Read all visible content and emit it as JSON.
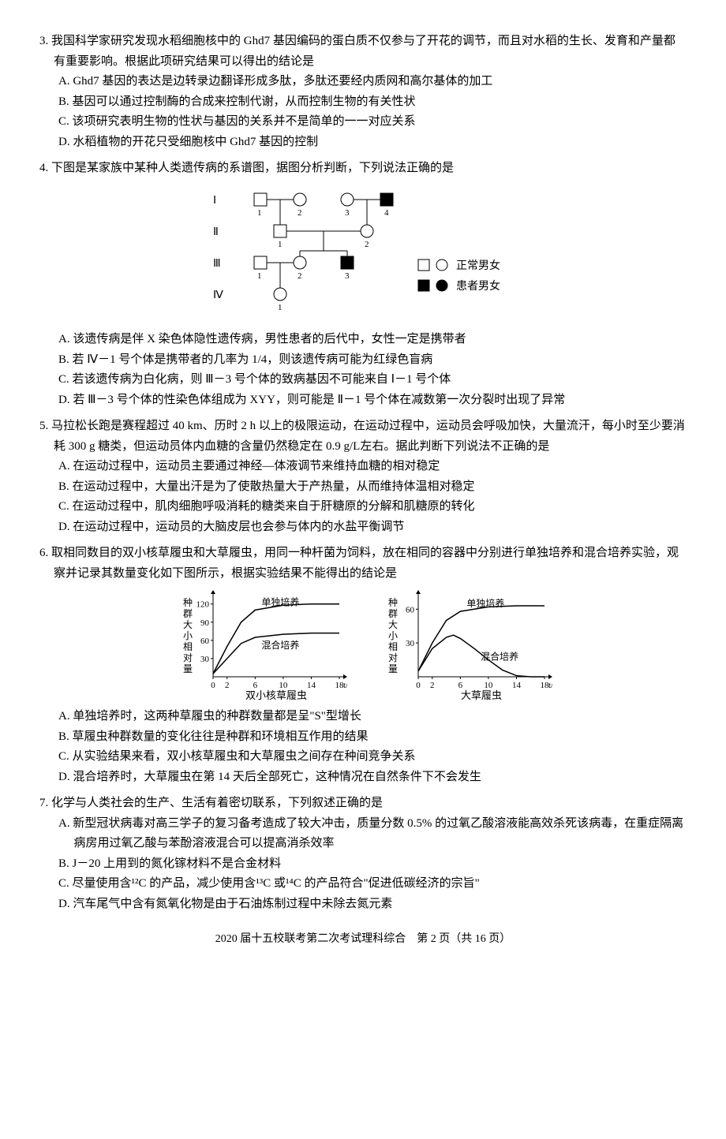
{
  "q3": {
    "stem": "3. 我国科学家研究发现水稻细胞核中的 Ghd7 基因编码的蛋白质不仅参与了开花的调节，而且对水稻的生长、发育和产量都有重要影响。根据此项研究结果可以得出的结论是",
    "A": "A. Ghd7 基因的表达是边转录边翻译形成多肽，多肽还要经内质网和高尔基体的加工",
    "B": "B. 基因可以通过控制酶的合成来控制代谢，从而控制生物的有关性状",
    "C": "C. 该项研究表明生物的性状与基因的关系并不是简单的一一对应关系",
    "D": "D. 水稻植物的开花只受细胞核中 Ghd7 基因的控制"
  },
  "q4": {
    "stem": "4. 下图是某家族中某种人类遗传病的系谱图，据图分析判断，下列说法正确的是",
    "pedigree": {
      "rows_labels": [
        "Ⅰ",
        "Ⅱ",
        "Ⅲ",
        "Ⅳ"
      ],
      "legend_normal": "正常男女",
      "legend_affected": "患者男女",
      "node_color_normal": "#ffffff",
      "node_color_affected": "#000000",
      "stroke": "#000000",
      "row1": [
        {
          "id": "1",
          "shape": "square",
          "fill": "#ffffff",
          "x": 90
        },
        {
          "id": "2",
          "shape": "circle",
          "fill": "#ffffff",
          "x": 140
        },
        {
          "id": "3",
          "shape": "circle",
          "fill": "#ffffff",
          "x": 200
        },
        {
          "id": "4",
          "shape": "square",
          "fill": "#000000",
          "x": 250
        }
      ],
      "row2": [
        {
          "id": "1",
          "shape": "square",
          "fill": "#ffffff",
          "x": 115
        },
        {
          "id": "2",
          "shape": "circle",
          "fill": "#ffffff",
          "x": 225
        }
      ],
      "row3": [
        {
          "id": "1",
          "shape": "square",
          "fill": "#ffffff",
          "x": 90
        },
        {
          "id": "2",
          "shape": "circle",
          "fill": "#ffffff",
          "x": 140
        },
        {
          "id": "3",
          "shape": "square",
          "fill": "#000000",
          "x": 200
        }
      ],
      "row4": [
        {
          "id": "1",
          "shape": "circle",
          "fill": "#ffffff",
          "x": 115
        }
      ]
    },
    "A": "A. 该遗传病是伴 X 染色体隐性遗传病，男性患者的后代中，女性一定是携带者",
    "B": "B. 若 Ⅳ－1 号个体是携带者的几率为 1/4，则该遗传病可能为红绿色盲病",
    "C": "C. 若该遗传病为白化病，则 Ⅲ－3 号个体的致病基因不可能来自 Ⅰ－1 号个体",
    "D": "D. 若 Ⅲ－3 号个体的性染色体组成为 XYY，则可能是 Ⅱ－1 号个体在减数第一次分裂时出现了异常"
  },
  "q5": {
    "stem": "5. 马拉松长跑是赛程超过 40 km、历时 2 h 以上的极限运动，在运动过程中，运动员会呼吸加快，大量流汗，每小时至少要消耗 300 g 糖类，但运动员体内血糖的含量仍然稳定在 0.9 g/L左右。据此判断下列说法不正确的是",
    "A": "A. 在运动过程中，运动员主要通过神经—体液调节来维持血糖的相对稳定",
    "B": "B. 在运动过程中，大量出汗是为了使散热量大于产热量，从而维持体温相对稳定",
    "C": "C. 在运动过程中，肌肉细胞呼吸消耗的糖类来自于肝糖原的分解和肌糖原的转化",
    "D": "D. 在运动过程中，运动员的大脑皮层也会参与体内的水盐平衡调节"
  },
  "q6": {
    "stem": "6. 取相同数目的双小核草履虫和大草履虫，用同一种杆菌为饲料，放在相同的容器中分别进行单独培养和混合培养实验，观察并记录其数量变化如下图所示，根据实验结果不能得出的结论是",
    "chart_left": {
      "type": "line",
      "title_x": "双小核草履虫",
      "y_label": "种群大小相对量",
      "x_label": "t/d",
      "x_ticks": [
        0,
        2,
        6,
        10,
        14,
        18
      ],
      "y_ticks": [
        30,
        60,
        90,
        120
      ],
      "series": [
        {
          "name": "单独培养",
          "color": "#000000",
          "points": [
            [
              0,
              5
            ],
            [
              2,
              50
            ],
            [
              4,
              90
            ],
            [
              6,
              110
            ],
            [
              10,
              118
            ],
            [
              14,
              120
            ],
            [
              18,
              120
            ]
          ]
        },
        {
          "name": "混合培养",
          "color": "#000000",
          "points": [
            [
              0,
              5
            ],
            [
              2,
              30
            ],
            [
              4,
              55
            ],
            [
              6,
              65
            ],
            [
              10,
              70
            ],
            [
              14,
              72
            ],
            [
              18,
              72
            ]
          ]
        }
      ],
      "ylim": [
        0,
        130
      ],
      "xlim": [
        0,
        18
      ]
    },
    "chart_right": {
      "type": "line",
      "title_x": "大草履虫",
      "y_label": "种群大小相对量",
      "x_label": "t/d",
      "x_ticks": [
        0,
        2,
        6,
        10,
        14,
        18
      ],
      "y_ticks": [
        30,
        60
      ],
      "series": [
        {
          "name": "单独培养",
          "color": "#000000",
          "points": [
            [
              0,
              5
            ],
            [
              2,
              30
            ],
            [
              4,
              50
            ],
            [
              6,
              58
            ],
            [
              10,
              62
            ],
            [
              14,
              63
            ],
            [
              18,
              63
            ]
          ]
        },
        {
          "name": "混合培养",
          "color": "#000000",
          "points": [
            [
              0,
              5
            ],
            [
              2,
              25
            ],
            [
              4,
              35
            ],
            [
              5,
              37
            ],
            [
              6,
              34
            ],
            [
              8,
              25
            ],
            [
              10,
              15
            ],
            [
              12,
              6
            ],
            [
              14,
              1
            ],
            [
              16,
              0
            ],
            [
              18,
              0
            ]
          ]
        }
      ],
      "ylim": [
        0,
        70
      ],
      "xlim": [
        0,
        18
      ]
    },
    "A": "A. 单独培养时，这两种草履虫的种群数量都是呈\"S\"型增长",
    "B": "B. 草履虫种群数量的变化往往是种群和环境相互作用的结果",
    "C": "C. 从实验结果来看，双小核草履虫和大草履虫之间存在种间竞争关系",
    "D": "D. 混合培养时，大草履虫在第 14 天后全部死亡，这种情况在自然条件下不会发生"
  },
  "q7": {
    "stem": "7. 化学与人类社会的生产、生活有着密切联系，下列叙述正确的是",
    "A": "A. 新型冠状病毒对高三学子的复习备考造成了较大冲击，质量分数 0.5% 的过氧乙酸溶液能高效杀死该病毒，在重症隔离病房用过氧乙酸与苯酚溶液混合可以提高消杀效率",
    "B": "B. J－20 上用到的氮化镓材料不是合金材料",
    "C": "C. 尽量使用含¹²C 的产品，减少使用含¹³C 或¹⁴C 的产品符合\"促进低碳经济的宗旨\"",
    "D": "D. 汽车尾气中含有氮氧化物是由于石油炼制过程中未除去氮元素"
  },
  "footer": "2020 届十五校联考第二次考试理科综合　第 2 页（共 16 页）"
}
